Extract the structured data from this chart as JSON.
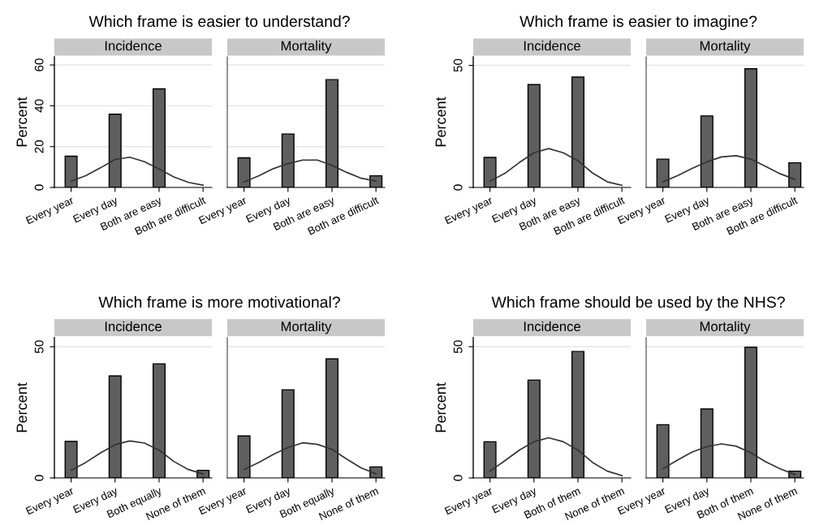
{
  "chart_data": [
    {
      "type": "bar",
      "title": "Which frame is easier to understand?",
      "subtitle": "Incidence",
      "ylabel": "Percent",
      "categories": [
        "Every year",
        null,
        null,
        "Every day",
        null,
        null,
        "Both are easy",
        null,
        null,
        "Both are difficult"
      ],
      "ylim": [
        0,
        64
      ],
      "yticks": [
        0,
        20,
        40,
        60
      ],
      "grid": "y",
      "series": [
        {
          "color": "#5f5f5f",
          "values": [
            15.3,
            null,
            null,
            35.9,
            null,
            null,
            48.3,
            null,
            null,
            0
          ]
        },
        {
          "type": "line",
          "color": "#333333",
          "values": [
            3.1,
            5.8,
            9.6,
            13.7,
            14.8,
            12.6,
            9.0,
            5.2,
            2.5,
            1.1
          ]
        }
      ]
    },
    {
      "type": "bar",
      "subtitle": "Mortality",
      "categories": [
        "Every year",
        null,
        null,
        "Every day",
        null,
        null,
        "Both are easy",
        null,
        null,
        "Both are difficult"
      ],
      "ylim": [
        0,
        64
      ],
      "yticks": [
        0,
        20,
        40,
        60
      ],
      "grid": "y",
      "tick_labels": "x",
      "series": [
        {
          "color": "#5f5f5f",
          "values": [
            14.5,
            null,
            null,
            26.2,
            null,
            null,
            52.8,
            null,
            null,
            5.7
          ]
        },
        {
          "type": "line",
          "color": "#333333",
          "values": [
            2.7,
            5.7,
            9.2,
            11.7,
            13.4,
            13.4,
            10.8,
            7.4,
            4.5,
            3.1
          ]
        }
      ]
    },
    {
      "type": "bar",
      "title": "Which frame is easier to imagine?",
      "subtitle": "Incidence",
      "ylabel": "Percent",
      "categories": [
        "Every year",
        null,
        null,
        "Every day",
        null,
        null,
        "Both are easy",
        null,
        null,
        "Both are difficult"
      ],
      "ylim": [
        0,
        53.5
      ],
      "yticks": [
        0,
        50
      ],
      "grid": "y",
      "series": [
        {
          "color": "#5f5f5f",
          "values": [
            12.3,
            null,
            null,
            42.1,
            null,
            null,
            45.2,
            null,
            null,
            0
          ]
        },
        {
          "type": "line",
          "color": "#333333",
          "values": [
            2.5,
            5.7,
            10.2,
            14.2,
            15.9,
            14.2,
            10.9,
            5.9,
            2.3,
            0.9
          ]
        }
      ]
    },
    {
      "type": "bar",
      "subtitle": "Mortality",
      "categories": [
        "Every year",
        null,
        null,
        "Every day",
        null,
        null,
        "Both are easy",
        null,
        null,
        "Both are difficult"
      ],
      "ylim": [
        0,
        53.5
      ],
      "yticks": [
        0,
        50
      ],
      "grid": "y",
      "tick_labels": "x",
      "series": [
        {
          "color": "#5f5f5f",
          "values": [
            11.6,
            null,
            null,
            29.3,
            null,
            null,
            48.6,
            null,
            null,
            10.1
          ]
        },
        {
          "type": "line",
          "color": "#333333",
          "values": [
            2.3,
            4.8,
            7.8,
            10.5,
            12.5,
            13.0,
            11.6,
            8.6,
            5.6,
            3.3
          ]
        }
      ]
    },
    {
      "type": "bar",
      "title": "Which frame is more motivational?",
      "subtitle": "Incidence",
      "ylabel": "Percent",
      "categories": [
        "Every year",
        null,
        null,
        "Every day",
        null,
        null,
        "Both equally",
        null,
        null,
        "None of them"
      ],
      "ylim": [
        0,
        53.5
      ],
      "yticks": [
        0,
        50
      ],
      "grid": "y",
      "series": [
        {
          "color": "#5f5f5f",
          "values": [
            13.9,
            null,
            null,
            38.9,
            null,
            null,
            43.5,
            null,
            null,
            2.9
          ]
        },
        {
          "type": "line",
          "color": "#333333",
          "values": [
            2.9,
            5.9,
            9.5,
            12.7,
            14.1,
            13.3,
            10.6,
            6.3,
            3.2,
            1.5
          ]
        }
      ]
    },
    {
      "type": "bar",
      "subtitle": "Mortality",
      "categories": [
        "Every year",
        null,
        null,
        "Every day",
        null,
        null,
        "Both equally",
        null,
        null,
        "None of them"
      ],
      "ylim": [
        0,
        53.5
      ],
      "yticks": [
        0,
        50
      ],
      "grid": "y",
      "tick_labels": "x",
      "series": [
        {
          "color": "#5f5f5f",
          "values": [
            16.0,
            null,
            null,
            33.6,
            null,
            null,
            45.4,
            null,
            null,
            4.2
          ]
        },
        {
          "type": "line",
          "color": "#333333",
          "values": [
            3.2,
            5.9,
            9.0,
            11.6,
            13.4,
            12.8,
            10.9,
            7.2,
            3.8,
            1.6
          ]
        }
      ]
    },
    {
      "type": "bar",
      "title": "Which frame should be used by the NHS?",
      "subtitle": "Incidence",
      "ylabel": "Percent",
      "categories": [
        "Every year",
        null,
        null,
        "Every day",
        null,
        null,
        "Both of them",
        null,
        null,
        "None of them"
      ],
      "ylim": [
        0,
        53.5
      ],
      "yticks": [
        0,
        50
      ],
      "grid": "y",
      "series": [
        {
          "color": "#5f5f5f",
          "values": [
            13.8,
            null,
            null,
            37.3,
            null,
            null,
            48.2,
            null,
            null,
            0
          ]
        },
        {
          "type": "line",
          "color": "#333333",
          "values": [
            2.6,
            6.5,
            10.6,
            13.8,
            15.3,
            13.8,
            10.6,
            5.9,
            2.6,
            0.9
          ]
        }
      ]
    },
    {
      "type": "bar",
      "subtitle": "Mortality",
      "categories": [
        "Every year",
        null,
        null,
        "Every day",
        null,
        null,
        "Both of them",
        null,
        null,
        "None of them"
      ],
      "ylim": [
        0,
        53.5
      ],
      "yticks": [
        0,
        50
      ],
      "grid": "y",
      "tick_labels": "x",
      "series": [
        {
          "color": "#5f5f5f",
          "values": [
            20.3,
            null,
            null,
            26.3,
            null,
            null,
            49.8,
            null,
            null,
            2.6
          ]
        },
        {
          "type": "line",
          "color": "#333333",
          "values": [
            3.5,
            6.8,
            9.9,
            11.9,
            13.0,
            12.1,
            9.6,
            6.2,
            3.5,
            1.3
          ]
        }
      ]
    }
  ]
}
